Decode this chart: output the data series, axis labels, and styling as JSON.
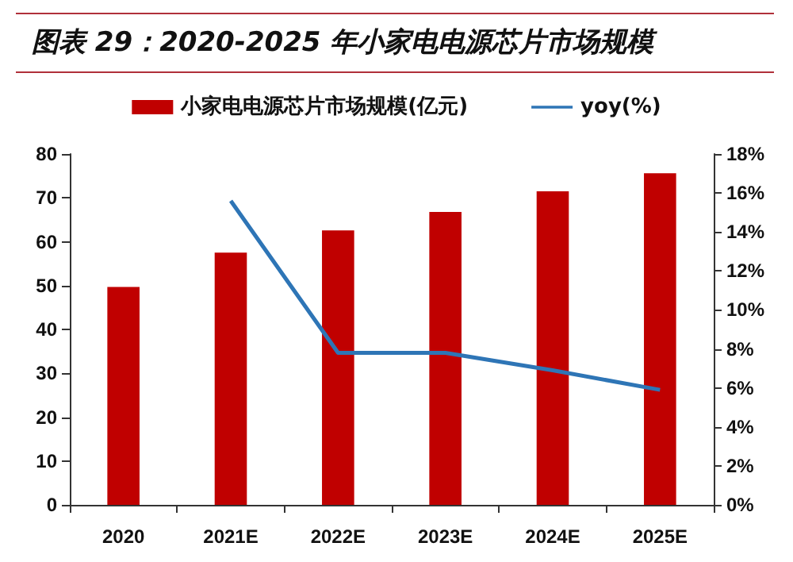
{
  "chart_data": {
    "type": "bar",
    "title": "图表 29：2020-2025 年小家电电源芯片市场规模",
    "categories": [
      "2020",
      "2021E",
      "2022E",
      "2023E",
      "2024E",
      "2025E"
    ],
    "series": [
      {
        "name": "小家电电源芯片市场规模(亿元)",
        "color": "#c00000",
        "values": [
          49.7,
          57.5,
          62.6,
          66.8,
          71.5,
          75.6
        ]
      },
      {
        "name": "yoy(%)",
        "type": "line",
        "axis": "y2",
        "color": "#2e75b6",
        "values": [
          null,
          15.6,
          7.8,
          7.8,
          6.9,
          5.9
        ]
      }
    ],
    "ylim": [
      0,
      80
    ],
    "yticks": [
      0,
      10,
      20,
      30,
      40,
      50,
      60,
      70,
      80
    ],
    "y2lim": [
      0,
      18
    ],
    "y2ticks": [
      {
        "value": 0,
        "label": "0%"
      },
      {
        "value": 2,
        "label": "2%"
      },
      {
        "value": 4,
        "label": "4%"
      },
      {
        "value": 6,
        "label": "6%"
      },
      {
        "value": 8,
        "label": "8%"
      },
      {
        "value": 10,
        "label": "10%"
      },
      {
        "value": 12,
        "label": "12%"
      },
      {
        "value": 14,
        "label": "14%"
      },
      {
        "value": 16,
        "label": "16%"
      },
      {
        "value": 18,
        "label": "18%"
      }
    ],
    "grid": false,
    "legend": "top",
    "marker": "none",
    "line_style": "solid"
  }
}
